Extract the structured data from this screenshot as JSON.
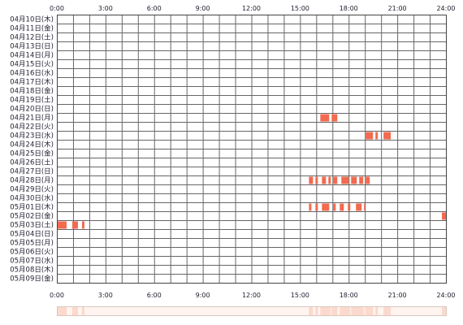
{
  "chart_data": {
    "type": "heatmap",
    "title": "",
    "xlabel": "",
    "ylabel": "",
    "x_ticks": [
      "0:00",
      "3:00",
      "6:00",
      "9:00",
      "12:00",
      "15:00",
      "18:00",
      "21:00",
      "24:00"
    ],
    "x_range_hours": [
      0,
      24
    ],
    "grid": true,
    "colors": {
      "mark": "#f26a4f",
      "grid": "#666666",
      "border": "#444444",
      "summary_stripe": "#fbd9cc",
      "summary_background": "#fff4ef"
    },
    "rows": [
      "04月10日(木)",
      "04月11日(金)",
      "04月12日(土)",
      "04月13日(日)",
      "04月14日(月)",
      "04月15日(火)",
      "04月16日(水)",
      "04月17日(木)",
      "04月18日(金)",
      "04月19日(土)",
      "04月20日(日)",
      "04月21日(月)",
      "04月22日(火)",
      "04月23日(水)",
      "04月24日(木)",
      "04月25日(金)",
      "04月26日(土)",
      "04月27日(日)",
      "04月28日(月)",
      "04月29日(火)",
      "04月30日(水)",
      "05月01日(木)",
      "05月02日(金)",
      "05月03日(土)",
      "05月04日(日)",
      "05月05日(月)",
      "05月06日(火)",
      "05月07日(水)",
      "05月08日(木)",
      "05月09日(金)"
    ],
    "activity": [
      {
        "day": "04月21日(月)",
        "start": 16.2,
        "end": 16.8
      },
      {
        "day": "04月21日(月)",
        "start": 16.9,
        "end": 17.3
      },
      {
        "day": "04月23日(水)",
        "start": 19.0,
        "end": 19.5
      },
      {
        "day": "04月23日(水)",
        "start": 19.6,
        "end": 19.8
      },
      {
        "day": "04月23日(水)",
        "start": 20.1,
        "end": 20.6
      },
      {
        "day": "04月28日(月)",
        "start": 15.5,
        "end": 15.8
      },
      {
        "day": "04月28日(月)",
        "start": 15.9,
        "end": 16.1
      },
      {
        "day": "04月28日(月)",
        "start": 16.3,
        "end": 16.6
      },
      {
        "day": "04月28日(月)",
        "start": 16.7,
        "end": 16.9
      },
      {
        "day": "04月28日(月)",
        "start": 17.0,
        "end": 17.3
      },
      {
        "day": "04月28日(月)",
        "start": 17.5,
        "end": 18.0
      },
      {
        "day": "04月28日(月)",
        "start": 18.1,
        "end": 18.5
      },
      {
        "day": "04月28日(月)",
        "start": 18.6,
        "end": 18.9
      },
      {
        "day": "04月28日(月)",
        "start": 19.0,
        "end": 19.3
      },
      {
        "day": "05月01日(木)",
        "start": 15.5,
        "end": 15.7
      },
      {
        "day": "05月01日(木)",
        "start": 15.9,
        "end": 16.1
      },
      {
        "day": "05月01日(木)",
        "start": 16.3,
        "end": 16.8
      },
      {
        "day": "05月01日(木)",
        "start": 17.0,
        "end": 17.2
      },
      {
        "day": "05月01日(木)",
        "start": 17.4,
        "end": 17.7
      },
      {
        "day": "05月01日(木)",
        "start": 17.9,
        "end": 18.1
      },
      {
        "day": "05月01日(木)",
        "start": 18.4,
        "end": 18.8
      },
      {
        "day": "05月01日(木)",
        "start": 18.9,
        "end": 19.0
      },
      {
        "day": "05月02日(金)",
        "start": 23.7,
        "end": 24.0
      },
      {
        "day": "05月03日(土)",
        "start": 0.0,
        "end": 0.6
      },
      {
        "day": "05月03日(土)",
        "start": 0.9,
        "end": 1.3
      },
      {
        "day": "05月03日(土)",
        "start": 1.5,
        "end": 1.7
      }
    ]
  }
}
